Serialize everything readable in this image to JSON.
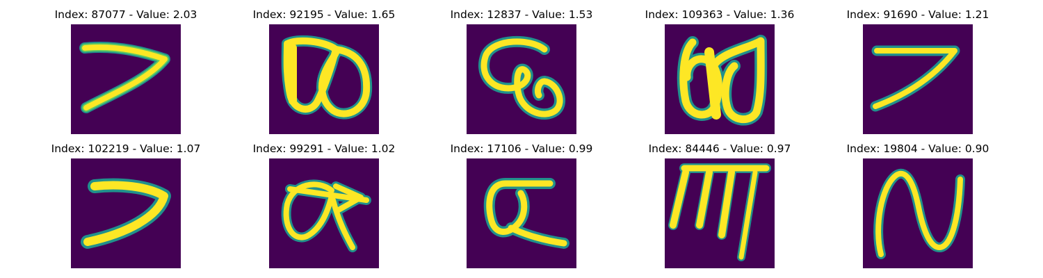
{
  "colors": {
    "background": "#440154",
    "stroke_outer": "#21918c",
    "stroke_mid": "#5ec962",
    "stroke_core": "#fde725"
  },
  "panels": [
    {
      "title": "Index: 87077 - Value: 2.03",
      "glyph": "seven-like"
    },
    {
      "title": "Index: 92195 - Value: 1.65",
      "glyph": "double-loop"
    },
    {
      "title": "Index: 12837 - Value: 1.53",
      "glyph": "hook-loop"
    },
    {
      "title": "Index: 109363 - Value: 1.36",
      "glyph": "double-loop-tall"
    },
    {
      "title": "Index: 91690 - Value: 1.21",
      "glyph": "seven-like"
    },
    {
      "title": "Index: 102219 - Value: 1.07",
      "glyph": "seven-like"
    },
    {
      "title": "Index: 99291 - Value: 1.02",
      "glyph": "loop-with-arrow"
    },
    {
      "title": "Index: 17106 - Value: 0.99",
      "glyph": "alpha-like"
    },
    {
      "title": "Index: 84446 - Value: 0.97",
      "glyph": "comb-like"
    },
    {
      "title": "Index: 19804 - Value: 0.90",
      "glyph": "n-like"
    }
  ]
}
